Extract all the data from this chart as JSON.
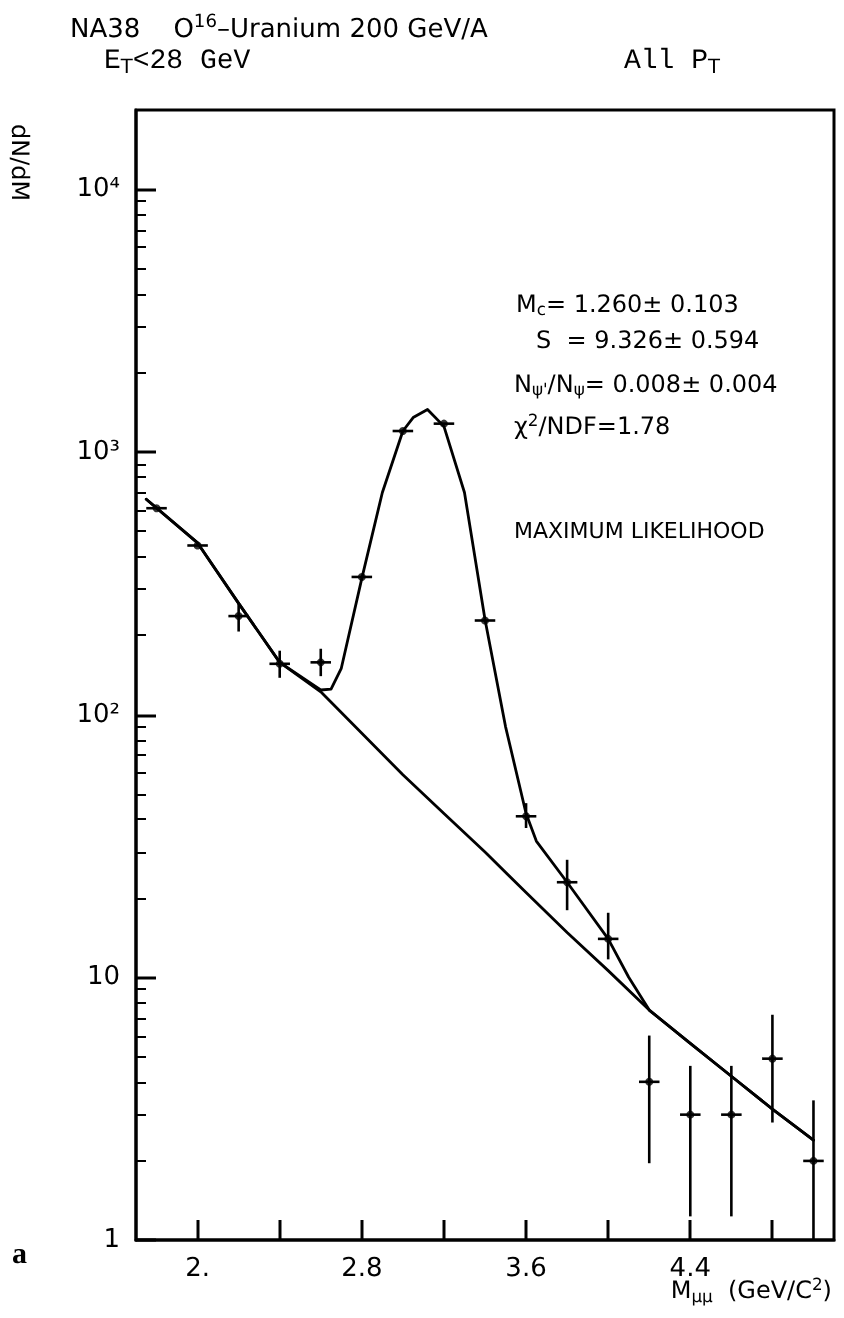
{
  "chart_data": {
    "type": "scatter",
    "title": "NA38    O$^{16}$–Uranium 200 GeV/A",
    "xlabel": "M$_{μμ}$  (GeV/C$^{2}$)",
    "ylabel": "dN/dM",
    "annotations": [
      "E$_{T}$<28 GeV",
      "All P$_{T}$",
      "M$_{c}$= 1.260± 0.103",
      "S  = 9.326± 0.594",
      "N$_{ψ'}$/N$_{ψ}$= 0.008± 0.004",
      "χ$^{2}$/NDF=1.78",
      "MAXIMUM LIKELIHOOD",
      "a"
    ],
    "log": "y",
    "grid": false,
    "xlim": [
      1.7,
      5.1
    ],
    "xticks": [
      {
        "value": 2,
        "label": "2."
      },
      {
        "value": 2.4,
        "label": null
      },
      2.8,
      {
        "value": 3.2,
        "label": null
      },
      3.6,
      {
        "value": 4.0,
        "label": null
      },
      4.4,
      {
        "value": 4.8,
        "label": null
      }
    ],
    "ylim": [
      1,
      20000
    ],
    "yticks": [
      1,
      10,
      {
        "value": 100,
        "label": "10²"
      },
      {
        "value": 1000,
        "label": "10³"
      },
      {
        "value": 10000,
        "label": "10⁴"
      }
    ],
    "series": [
      {
        "marker": "circle",
        "color": "#000000",
        "x": [
          1.8,
          2.0,
          2.2,
          2.4,
          2.6,
          2.8,
          3.0,
          3.2,
          3.4,
          3.6,
          3.8,
          4.0,
          4.2,
          4.4,
          4.6,
          4.8,
          5.0
        ],
        "values": [
          610,
          440,
          237,
          156,
          158,
          334,
          1200,
          1280,
          228,
          41,
          23,
          14,
          4.0,
          3.0,
          3.0,
          4.9,
          2.0
        ],
        "errors": [
          null,
          null,
          [
            207,
            265
          ],
          [
            138,
            175
          ],
          [
            140,
            178
          ],
          null,
          null,
          null,
          null,
          [
            37,
            46
          ],
          [
            18,
            28
          ],
          [
            11.7,
            17.6
          ],
          [
            1.96,
            6.0
          ],
          [
            1.23,
            4.6
          ],
          [
            1.23,
            4.6
          ],
          [
            2.8,
            7.2
          ],
          [
            1.0,
            3.4
          ]
        ],
        "xerrors": [
          0.05,
          0.05,
          0.05,
          0.05,
          0.05,
          0.05,
          0.05,
          0.05,
          0.05,
          0.05,
          0.05,
          0.05,
          0.05,
          0.05,
          0.05,
          0.05,
          0.05
        ]
      },
      {
        "type": "line",
        "color": "#000000",
        "x": [
          1.75,
          2.0,
          2.2,
          2.4,
          2.6,
          2.65,
          2.7,
          2.8,
          2.9,
          3.0,
          3.05,
          3.12,
          3.2,
          3.3,
          3.4,
          3.5,
          3.6,
          3.65,
          3.8,
          4.0,
          4.1,
          4.2,
          4.4,
          4.6,
          4.8,
          5.0
        ],
        "values": [
          660,
          450,
          265,
          158,
          124,
          125,
          150,
          330,
          700,
          1200,
          1350,
          1450,
          1250,
          700,
          230,
          90,
          42,
          33,
          23,
          14,
          10,
          7.5,
          5.6,
          4.2,
          3.15,
          2.4
        ]
      },
      {
        "type": "line",
        "color": "#000000",
        "x": [
          1.75,
          2.0,
          2.2,
          2.4,
          2.6,
          3.0,
          3.2,
          3.4,
          3.6,
          3.8,
          4.0,
          4.2,
          4.4,
          4.6,
          4.8,
          5.0
        ],
        "values": [
          660,
          450,
          265,
          158,
          122,
          59,
          42,
          30,
          21,
          14.8,
          10.6,
          7.5,
          5.6,
          4.2,
          3.15,
          2.4
        ]
      }
    ]
  }
}
